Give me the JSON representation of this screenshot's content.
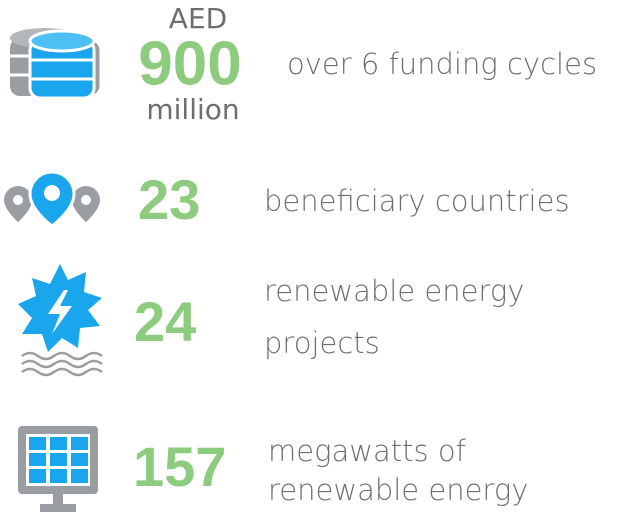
{
  "items": [
    {
      "prefix": "AED",
      "number": 900,
      "suffix": "million",
      "description_lines": [
        "over 6 funding cycles"
      ]
    },
    {
      "number": 23,
      "description_lines": [
        "beneficiary countries"
      ]
    },
    {
      "number": 24,
      "description_lines": [
        "renewable energy",
        "projects"
      ]
    },
    {
      "number": 157,
      "description_lines": [
        "megawatts of",
        "renewable energy"
      ]
    }
  ]
}
